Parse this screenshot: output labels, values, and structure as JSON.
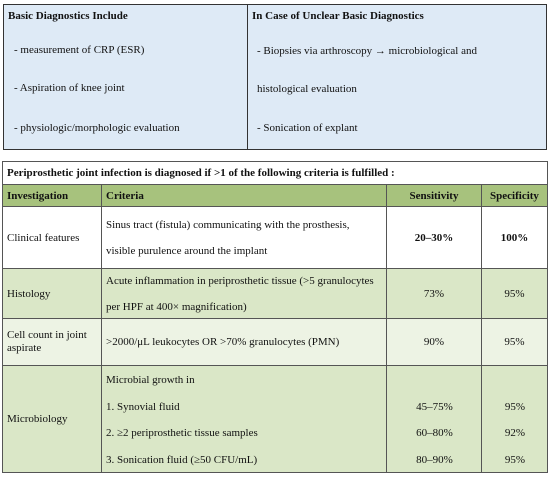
{
  "diagnostics": {
    "left": {
      "title": "Basic Diagnostics Include",
      "items": [
        "- measurement of CRP (ESR)",
        "- Aspiration of knee joint",
        "- physiologic/morphologic evaluation"
      ]
    },
    "right": {
      "title": "In Case of Unclear Basic Diagnostics",
      "items": [
        "- Biopsies via arthroscopy → microbiological and",
        "histological evaluation",
        "- Sonication of explant"
      ]
    }
  },
  "criteria_table": {
    "caption": "Periprosthetic joint infection is diagnosed if >1 of the following criteria is fulfilled :",
    "header": [
      "Investigation",
      "Criteria",
      "Sensitivity",
      "Specificity"
    ],
    "rows": [
      {
        "investigation": "Clinical features",
        "criteria": [
          "Sinus tract (fistula) communicating with the prosthesis,",
          "visible purulence around the implant"
        ],
        "sensitivity": [
          "20–30%"
        ],
        "specificity": [
          "100%"
        ]
      },
      {
        "investigation": "Histology",
        "criteria": [
          "Acute inflammation in periprosthetic tissue (>5 granulocytes",
          "per HPF at 400× magnification)"
        ],
        "sensitivity": [
          "73%"
        ],
        "specificity": [
          "95%"
        ]
      },
      {
        "investigation": "Cell count in joint aspirate",
        "criteria": [
          ">2000/μL leukocytes OR >70% granulocytes (PMN)"
        ],
        "sensitivity": [
          "90%"
        ],
        "specificity": [
          "95%"
        ]
      },
      {
        "investigation": "Microbiology",
        "criteria": [
          "Microbial growth in",
          "1. Synovial fluid",
          "2. ≥2 periprosthetic tissue samples",
          "3. Sonication fluid (≥50 CFU/mL)"
        ],
        "sensitivity": [
          "45–75%",
          "60–80%",
          "80–90%"
        ],
        "specificity": [
          "95%",
          "92%",
          "95%"
        ]
      }
    ]
  }
}
